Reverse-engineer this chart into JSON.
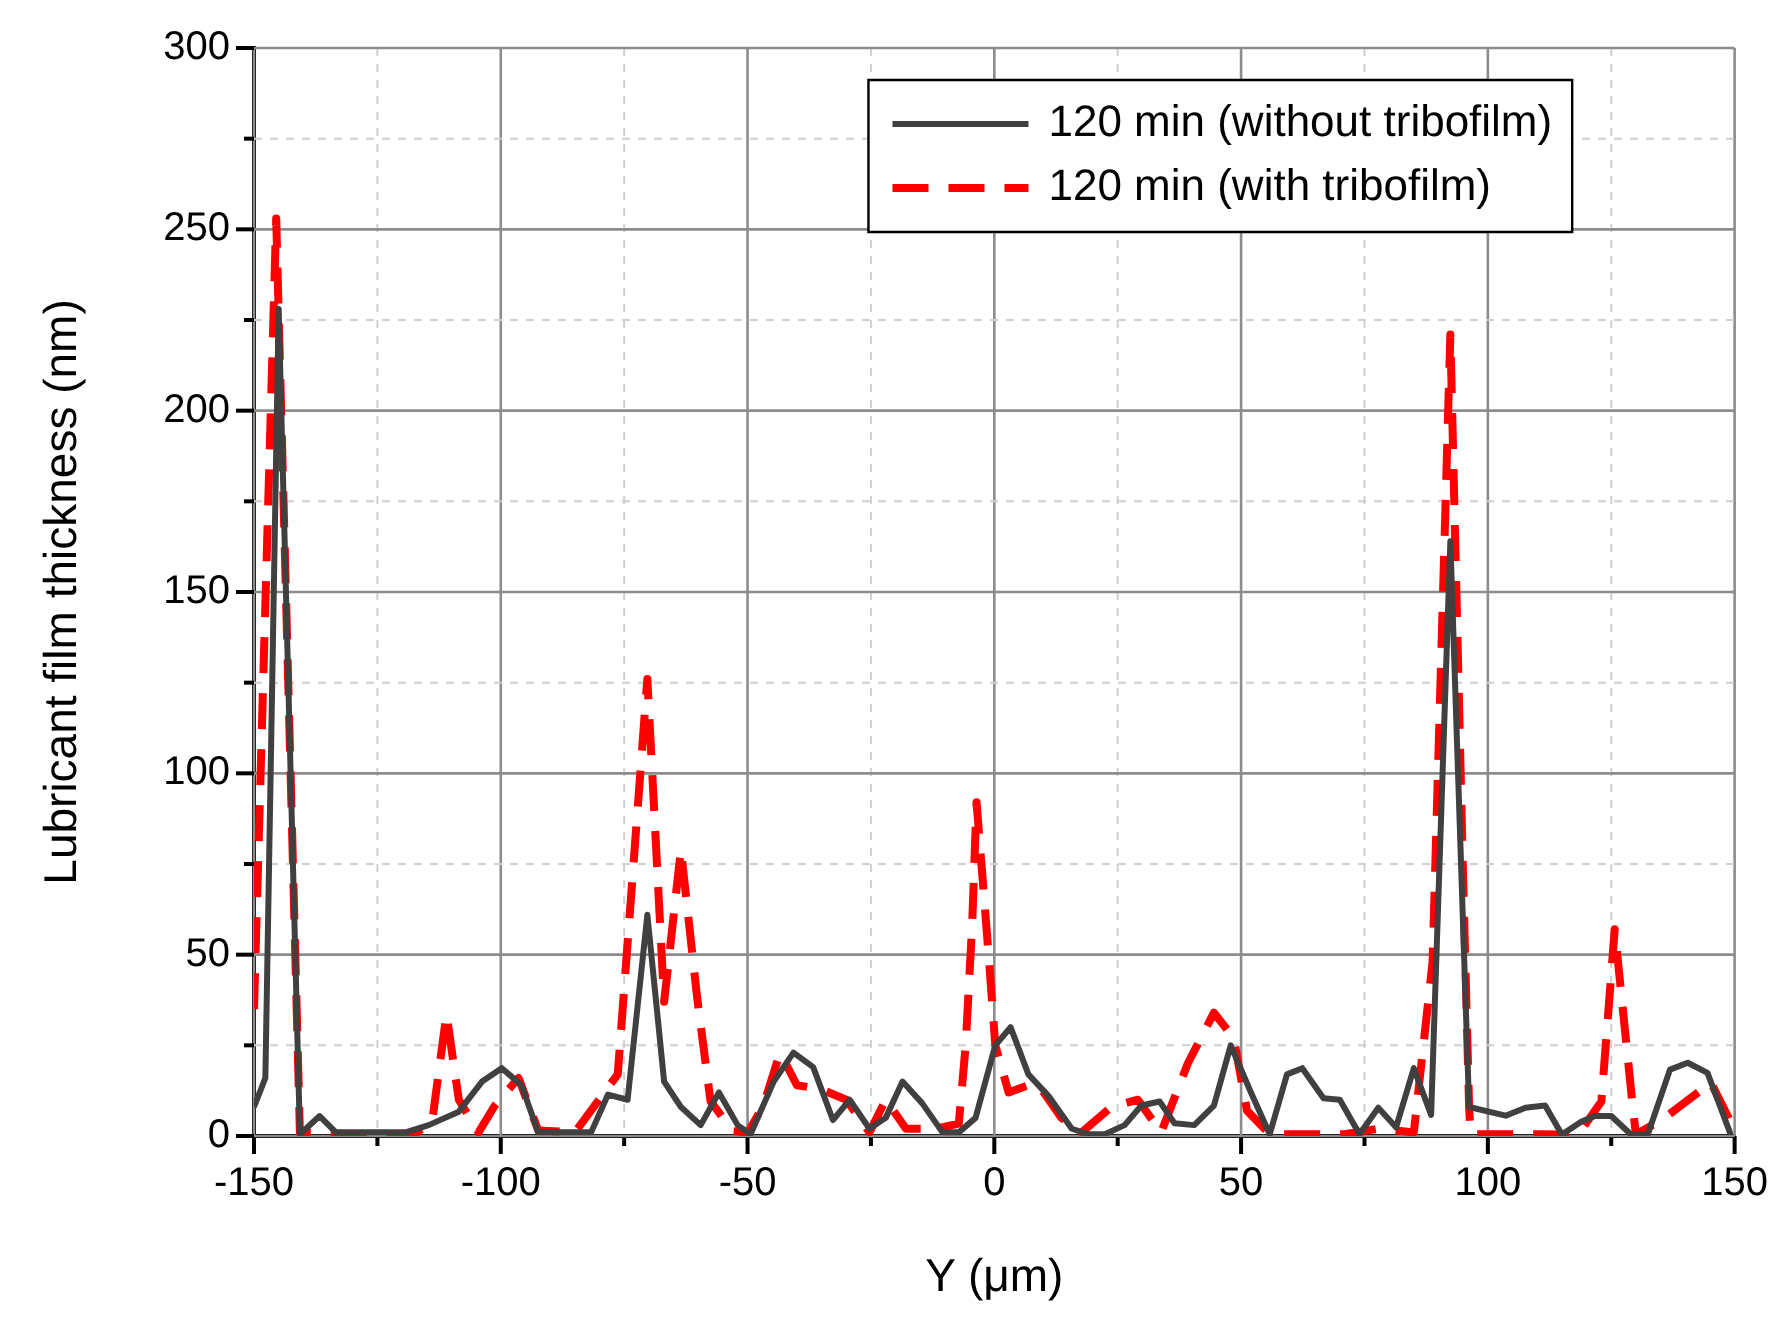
{
  "chart_data": {
    "type": "line",
    "xlabel": "Y (μm)",
    "ylabel": "Lubricant film thickness (nm)",
    "xlim": [
      -150,
      150
    ],
    "ylim": [
      0,
      300
    ],
    "xticks": [
      -150,
      {
        "value": -125,
        "label": null
      },
      -100,
      {
        "value": -75,
        "label": null
      },
      -50,
      {
        "value": -25,
        "label": null
      },
      0,
      {
        "value": 25,
        "label": null
      },
      50,
      {
        "value": 75,
        "label": null
      },
      100,
      {
        "value": 125,
        "label": null
      },
      150
    ],
    "yticks": [
      0,
      {
        "value": 25,
        "label": null
      },
      50,
      {
        "value": 75,
        "label": null
      },
      100,
      {
        "value": 125,
        "label": null
      },
      150,
      {
        "value": 175,
        "label": null
      },
      200,
      {
        "value": 225,
        "label": null
      },
      250,
      {
        "value": 275,
        "label": null
      },
      300
    ],
    "grid": true,
    "legend": "top",
    "marker": "none",
    "series": [
      {
        "name": "120 min (without tribofilm)",
        "color": "#404040",
        "line_style": "solid",
        "x": [
          -150,
          -147.7,
          -145,
          -140.7,
          -136.7,
          -133.4,
          -119.3,
          -114.6,
          -108.5,
          -103.8,
          -99.8,
          -95.8,
          -92.4,
          -81.7,
          -78.3,
          -74.3,
          -70.3,
          -66.9,
          -63.5,
          -59.5,
          -55.8,
          -52,
          -49.4,
          -44.7,
          -40.7,
          -36.7,
          -32.7,
          -29.3,
          -25.3,
          -22,
          -18.6,
          -14.6,
          -10.5,
          -7.2,
          -3.8,
          0.2,
          3.3,
          6.9,
          11,
          15.7,
          19,
          22.4,
          26.4,
          29.8,
          33.5,
          36.5,
          40.5,
          44.5,
          47.9,
          52,
          55.8,
          59.3,
          62.4,
          66.7,
          70,
          74,
          77.8,
          81.4,
          85,
          88.5,
          92.4,
          96.2,
          103.6,
          107.6,
          111.6,
          115,
          119,
          121.7,
          125,
          129,
          132.4,
          136.9,
          140.5,
          144.5,
          149.2
        ],
        "values": [
          8,
          16,
          228,
          0.5,
          5.5,
          1,
          1,
          3,
          6.7,
          15,
          18.7,
          14,
          1,
          1,
          11.4,
          10,
          61,
          15,
          8,
          3,
          12,
          3,
          0.5,
          15,
          23,
          19,
          4.4,
          10,
          2,
          5,
          15,
          9,
          1,
          1,
          5,
          25,
          30,
          17,
          11,
          2,
          0.5,
          0.5,
          3,
          8.4,
          9.5,
          3.5,
          3,
          8.4,
          25,
          12,
          0.5,
          17,
          18.7,
          10.4,
          10,
          0.5,
          7.8,
          2.4,
          18.7,
          5.8,
          164,
          8,
          5.6,
          7.8,
          8.4,
          0.4,
          4,
          5.5,
          5.5,
          0.4,
          0.4,
          18.3,
          20.2,
          17.4,
          0.4
        ]
      },
      {
        "name": "120 min (with tribofilm)",
        "color": "#ff0000",
        "line_style": "dashed",
        "x": [
          -150,
          -145.5,
          -140.7,
          -130,
          -119,
          -117,
          -113.9,
          -111,
          -108.5,
          -104.5,
          -101.2,
          -96.4,
          -92.4,
          -85,
          -76.3,
          -70.3,
          -66.9,
          -63.5,
          -60.2,
          -57.5,
          -53,
          -49.9,
          -46.8,
          -43.4,
          -40,
          -35.3,
          -30,
          -25.3,
          -22,
          -17.9,
          -11.9,
          -7.2,
          -5.8,
          -4.5,
          -3.6,
          -1.1,
          0.2,
          2.9,
          6.9,
          9,
          13.6,
          17.7,
          23.7,
          29.1,
          33.8,
          39.2,
          44.5,
          48.5,
          51.2,
          55.8,
          63,
          71,
          77.8,
          85,
          88.8,
          92.4,
          94.9,
          96.2,
          96.5,
          104,
          110,
          118.3,
          123,
          125.7,
          129.3,
          130,
          135.8,
          145.2,
          150
        ],
        "values": [
          35,
          253,
          1,
          0.5,
          0.5,
          1,
          4,
          33.7,
          10,
          1,
          8.4,
          16,
          1.5,
          1,
          17,
          126,
          37,
          79,
          38,
          9.6,
          1.3,
          1,
          8.4,
          23,
          14,
          13,
          10,
          1,
          10,
          2,
          2,
          3.4,
          25,
          58,
          92,
          49,
          25,
          12,
          14,
          14,
          5,
          1,
          8,
          10,
          1,
          20,
          34,
          27,
          7,
          0.5,
          0.5,
          0.5,
          2,
          1,
          48,
          221,
          76,
          8,
          0.5,
          0.5,
          0.5,
          0.4,
          9.5,
          57,
          8.8,
          0.4,
          5,
          14.7,
          1.7
        ]
      }
    ]
  }
}
